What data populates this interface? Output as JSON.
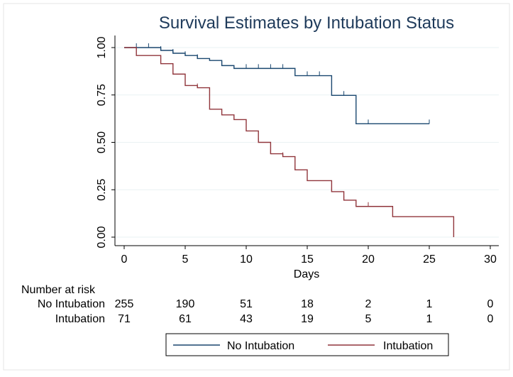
{
  "chart_data": {
    "type": "line",
    "title": "Survival Estimates by Intubation Status",
    "xlabel": "Days",
    "ylabel": "",
    "xlim": [
      0,
      30
    ],
    "ylim": [
      0,
      1
    ],
    "xticks": [
      0,
      5,
      10,
      15,
      20,
      25,
      30
    ],
    "yticks": [
      "0.00",
      "0.25",
      "0.50",
      "0.75",
      "1.00"
    ],
    "grid": "horizontal",
    "legend_position": "bottom",
    "series": [
      {
        "name": "No Intubation",
        "color": "#1a476f",
        "steps": [
          [
            0,
            1.0
          ],
          [
            3,
            0.985
          ],
          [
            4,
            0.97
          ],
          [
            5,
            0.958
          ],
          [
            6,
            0.942
          ],
          [
            7,
            0.932
          ],
          [
            8,
            0.905
          ],
          [
            9,
            0.89
          ],
          [
            14,
            0.852
          ],
          [
            17,
            0.748
          ],
          [
            19,
            0.598
          ],
          [
            25,
            0.598
          ]
        ],
        "censored": [
          [
            1,
            1.0
          ],
          [
            2,
            1.0
          ],
          [
            3,
            0.985
          ],
          [
            4,
            0.97
          ],
          [
            5,
            0.958
          ],
          [
            6,
            0.942
          ],
          [
            8,
            0.905
          ],
          [
            10,
            0.89
          ],
          [
            11,
            0.89
          ],
          [
            12,
            0.89
          ],
          [
            13,
            0.89
          ],
          [
            15,
            0.852
          ],
          [
            16,
            0.852
          ],
          [
            18,
            0.748
          ],
          [
            20,
            0.598
          ],
          [
            25,
            0.598
          ]
        ]
      },
      {
        "name": "Intubation",
        "color": "#90353b",
        "steps": [
          [
            0,
            1.0
          ],
          [
            1,
            0.958
          ],
          [
            3,
            0.915
          ],
          [
            4,
            0.86
          ],
          [
            5,
            0.8
          ],
          [
            6,
            0.788
          ],
          [
            7,
            0.675
          ],
          [
            8,
            0.645
          ],
          [
            9,
            0.62
          ],
          [
            10,
            0.56
          ],
          [
            11,
            0.5
          ],
          [
            12,
            0.44
          ],
          [
            13,
            0.425
          ],
          [
            14,
            0.355
          ],
          [
            15,
            0.298
          ],
          [
            17,
            0.24
          ],
          [
            18,
            0.195
          ],
          [
            19,
            0.162
          ],
          [
            22,
            0.108
          ],
          [
            27,
            0.108
          ],
          [
            27,
            0.0
          ]
        ],
        "censored": [
          [
            6,
            0.788
          ],
          [
            11,
            0.5
          ],
          [
            12,
            0.44
          ],
          [
            13,
            0.425
          ],
          [
            14,
            0.355
          ],
          [
            15,
            0.298
          ],
          [
            17,
            0.24
          ],
          [
            18,
            0.195
          ],
          [
            20,
            0.162
          ]
        ]
      }
    ]
  },
  "risk_table": {
    "title": "Number at risk",
    "times": [
      0,
      5,
      10,
      15,
      20,
      25,
      30
    ],
    "rows": [
      {
        "label": "No Intubation",
        "values": [
          "255",
          "190",
          "51",
          "18",
          "2",
          "1",
          "0"
        ]
      },
      {
        "label": "Intubation",
        "values": [
          "71",
          "61",
          "43",
          "19",
          "5",
          "1",
          "0"
        ]
      }
    ]
  }
}
